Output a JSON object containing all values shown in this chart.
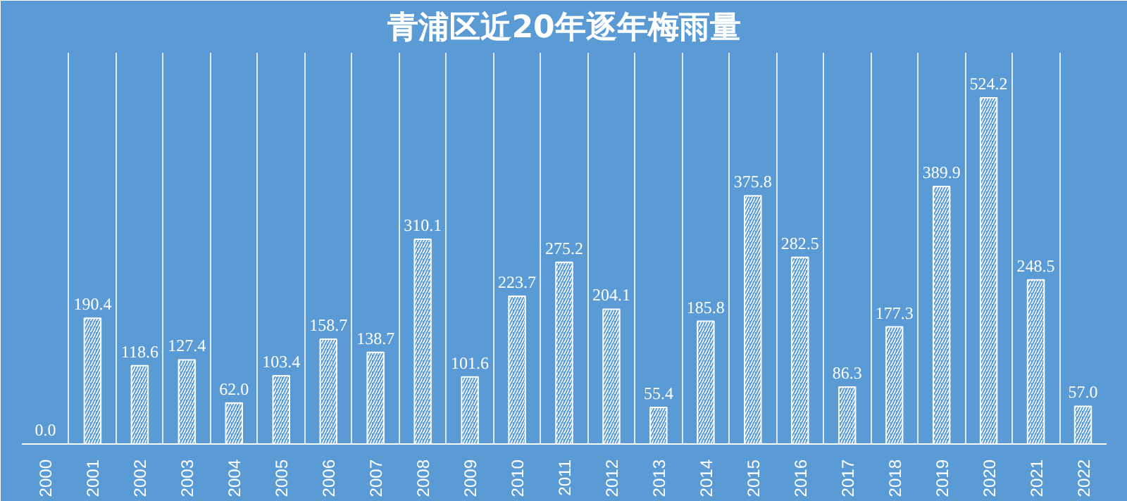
{
  "chart_data": {
    "type": "bar",
    "title": "青浦区近20年逐年梅雨量",
    "categories": [
      "2000",
      "2001",
      "2002",
      "2003",
      "2004",
      "2005",
      "2006",
      "2007",
      "2008",
      "2009",
      "2010",
      "2011",
      "2012",
      "2013",
      "2014",
      "2015",
      "2016",
      "2017",
      "2018",
      "2019",
      "2020",
      "2021",
      "2022"
    ],
    "values": [
      0.0,
      190.4,
      118.6,
      127.4,
      62.0,
      103.4,
      158.7,
      138.7,
      310.1,
      101.6,
      223.7,
      275.2,
      204.1,
      55.4,
      185.8,
      375.8,
      282.5,
      86.3,
      177.3,
      389.9,
      524.2,
      248.5,
      57.0
    ],
    "value_labels": [
      "0.0",
      "190.4",
      "118.6",
      "127.4",
      "62.0",
      "103.4",
      "158.7",
      "138.7",
      "310.1",
      "101.6",
      "223.7",
      "275.2",
      "204.1",
      "55.4",
      "185.8",
      "375.8",
      "282.5",
      "86.3",
      "177.3",
      "389.9",
      "524.2",
      "248.5",
      "57.0"
    ],
    "color": "#ffffff",
    "grid": "x"
  }
}
